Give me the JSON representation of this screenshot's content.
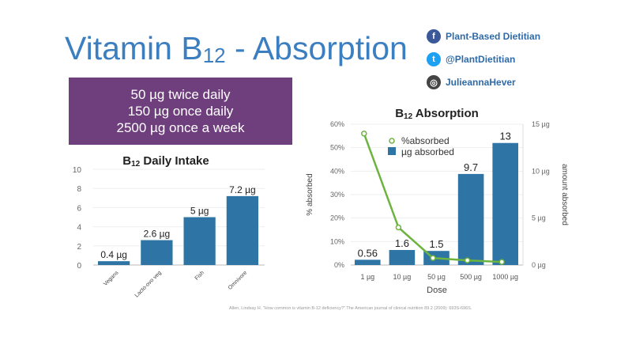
{
  "title": {
    "main": "Vitamin B",
    "sub": "12",
    "rest": " - Absorption"
  },
  "social": [
    {
      "icon": "facebook-icon",
      "label": "Plant-Based Dietitian",
      "color": "#3b5998",
      "glyph": "f"
    },
    {
      "icon": "twitter-icon",
      "label": "@PlantDietitian",
      "color": "#1da1f2",
      "glyph": "t"
    },
    {
      "icon": "instagram-icon",
      "label": "JulieannaHever",
      "color": "#444444",
      "glyph": "◎"
    }
  ],
  "dosing": [
    "50 µg twice daily",
    "150 µg once daily",
    "2500 µg once a week"
  ],
  "citation": "Allen, Lindsay H. \"How common is vitamin B-12 deficiency?\" The American journal of clinical nutrition 89.2 (2009): 693S-696S.",
  "colors": {
    "bar": "#2e75a6",
    "line": "#6db33f",
    "box": "#6e3f7c"
  },
  "chart_data": [
    {
      "type": "bar",
      "title": "B12 Daily Intake",
      "categories": [
        "Vegans",
        "Lacto-ovo veg",
        "Fish",
        "Omnivore"
      ],
      "values": [
        0.4,
        2.6,
        5,
        7.2
      ],
      "data_labels": [
        "0.4 µg",
        "2.6 µg",
        "5 µg",
        "7.2 µg"
      ],
      "ylim": [
        0,
        10
      ],
      "yticks": [
        "0",
        "2",
        "4",
        "6",
        "8",
        "10"
      ],
      "grid": true
    },
    {
      "type": "bar+line",
      "title": "B12 Absorption",
      "xlabel": "Dose",
      "ylabel": "% absorbed",
      "y2label": "amount absorbed",
      "categories": [
        "1 µg",
        "10 µg",
        "50 µg",
        "500 µg",
        "1000 µg"
      ],
      "series": [
        {
          "name": "µg absorbed",
          "type": "bar",
          "axis": "right",
          "values": [
            0.56,
            1.6,
            1.5,
            9.7,
            13
          ],
          "data_labels": [
            "0.56",
            "1.6",
            "1.5",
            "9.7",
            "13"
          ]
        },
        {
          "name": "%absorbed",
          "type": "line",
          "axis": "left",
          "values": [
            56,
            16,
            3,
            2,
            1.3
          ]
        }
      ],
      "ylim": [
        0,
        60
      ],
      "y2lim": [
        0,
        15
      ],
      "yticks": [
        "0%",
        "10%",
        "20%",
        "30%",
        "40%",
        "50%",
        "60%"
      ],
      "y2ticks": [
        "0 µg",
        "5 µg",
        "10 µg",
        "15 µg"
      ],
      "legend": "top-left",
      "grid": true
    }
  ]
}
